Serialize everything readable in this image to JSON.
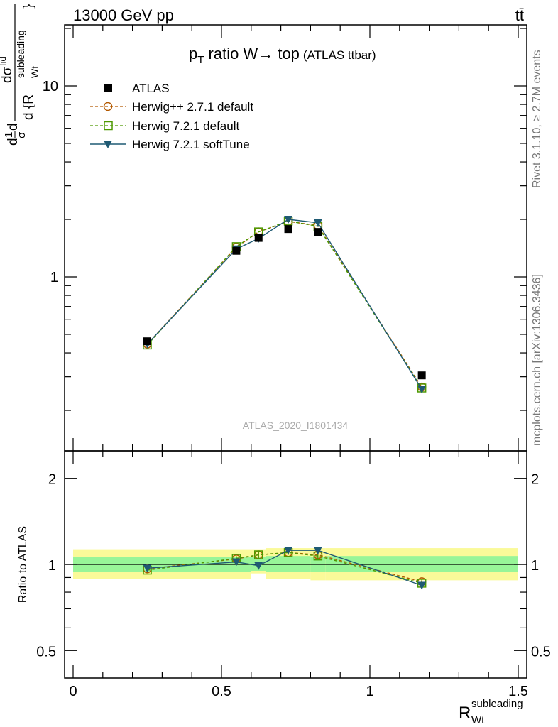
{
  "header": {
    "process": "13000 GeV pp",
    "final_state": "tt̄"
  },
  "side_text": {
    "rivet": "Rivet 3.1.10, ≥ 2.7M events",
    "source": "mcplots.cern.ch [arXiv:1306.3436]"
  },
  "colors": {
    "atlas": "#000000",
    "herwigpp_271": "#b35900",
    "herwig_721_default": "#4d9900",
    "herwig_721_softtune": "#1f5a73",
    "band_inner": "#98f598",
    "band_outer": "#fafa99"
  },
  "chart_data": [
    {
      "type": "line",
      "panel": "main",
      "title": "p_T ratio W→ top (ATLAS ttbar)",
      "title_parts": {
        "p": "p",
        "sub": "T",
        "rest": " ratio W",
        "arrow": "→",
        "top": " top",
        "small": "(ATLAS ttbar)"
      },
      "ylabel_parts": {
        "d1": "d",
        "one": "1",
        "sigma": "σ",
        "d2": "d",
        "dsigma": "dσ",
        "fid": "fid",
        "d3": "d {R",
        "sup": "subleading",
        "sub": "Wt",
        "brace": "}"
      },
      "watermark": "ATLAS_2020_I1801434",
      "y_scale": "log",
      "ylim": [
        0.17,
        20
      ],
      "xlim": [
        -0.03,
        1.52
      ],
      "y_tick_labels": [
        "1",
        "10"
      ],
      "x_bin_edges": [
        0.0,
        0.5,
        0.6,
        0.65,
        0.8,
        0.85,
        1.5
      ],
      "series": [
        {
          "name": "ATLAS",
          "style": "data",
          "x": [
            0.25,
            0.55,
            0.625,
            0.725,
            0.825,
            1.175
          ],
          "y": [
            0.46,
            1.37,
            1.6,
            1.78,
            1.72,
            0.305
          ]
        },
        {
          "name": "Herwig++ 2.7.1 default",
          "style": "circle",
          "x": [
            0.25,
            0.55,
            0.625,
            0.725,
            0.825,
            1.175
          ],
          "y": [
            0.445,
            1.43,
            1.72,
            1.95,
            1.86,
            0.265
          ]
        },
        {
          "name": "Herwig 7.2.1 default",
          "style": "square",
          "x": [
            0.25,
            0.55,
            0.625,
            0.725,
            0.825,
            1.175
          ],
          "y": [
            0.44,
            1.44,
            1.72,
            1.96,
            1.84,
            0.262
          ]
        },
        {
          "name": "Herwig 7.2.1 softTune",
          "style": "triangle",
          "x": [
            0.25,
            0.55,
            0.625,
            0.725,
            0.825,
            1.175
          ],
          "y": [
            0.445,
            1.4,
            1.59,
            2.0,
            1.92,
            0.258
          ]
        }
      ]
    },
    {
      "type": "line",
      "panel": "ratio",
      "ylabel": "Ratio to ATLAS",
      "xlabel_parts": {
        "main": "R",
        "sup": "subleading",
        "sub": "Wt"
      },
      "ylim": [
        0.42,
        2.5
      ],
      "xlim": [
        -0.03,
        1.52
      ],
      "y_tick_labels": [
        "0.5",
        "1",
        "2"
      ],
      "x_tick_labels": [
        "0",
        "0.5",
        "1",
        "1.5"
      ],
      "band_bins": [
        {
          "x0": 0.0,
          "x1": 0.5,
          "inner": [
            0.94,
            1.06
          ],
          "outer": [
            0.89,
            1.13
          ]
        },
        {
          "x0": 0.5,
          "x1": 0.6,
          "inner": [
            0.94,
            1.06
          ],
          "outer": [
            0.89,
            1.13
          ]
        },
        {
          "x0": 0.6,
          "x1": 0.65,
          "inner": [
            0.95,
            1.06
          ],
          "outer": [
            0.93,
            1.13
          ]
        },
        {
          "x0": 0.65,
          "x1": 0.8,
          "inner": [
            0.94,
            1.07
          ],
          "outer": [
            0.89,
            1.14
          ]
        },
        {
          "x0": 0.8,
          "x1": 0.85,
          "inner": [
            0.94,
            1.06
          ],
          "outer": [
            0.88,
            1.14
          ]
        },
        {
          "x0": 0.85,
          "x1": 1.5,
          "inner": [
            0.94,
            1.07
          ],
          "outer": [
            0.88,
            1.14
          ]
        }
      ],
      "series": [
        {
          "name": "Herwig++ 2.7.1 default",
          "style": "circle",
          "x": [
            0.25,
            0.55,
            0.625,
            0.725,
            0.825,
            1.175
          ],
          "y": [
            0.965,
            1.045,
            1.08,
            1.1,
            1.08,
            0.87
          ],
          "err": [
            0.01,
            0.02,
            0.03,
            0.02,
            0.04,
            0.02
          ]
        },
        {
          "name": "Herwig 7.2.1 default",
          "style": "square",
          "x": [
            0.25,
            0.55,
            0.625,
            0.725,
            0.825,
            1.175
          ],
          "y": [
            0.955,
            1.05,
            1.08,
            1.1,
            1.07,
            0.86
          ],
          "err": [
            0.01,
            0.02,
            0.03,
            0.02,
            0.03,
            0.02
          ]
        },
        {
          "name": "Herwig 7.2.1 softTune",
          "style": "triangle",
          "x": [
            0.25,
            0.55,
            0.625,
            0.725,
            0.825,
            1.175
          ],
          "y": [
            0.97,
            1.02,
            0.99,
            1.12,
            1.12,
            0.845
          ],
          "err": [
            0.01,
            0.02,
            0.03,
            0.02,
            0.03,
            0.02
          ]
        }
      ]
    }
  ]
}
